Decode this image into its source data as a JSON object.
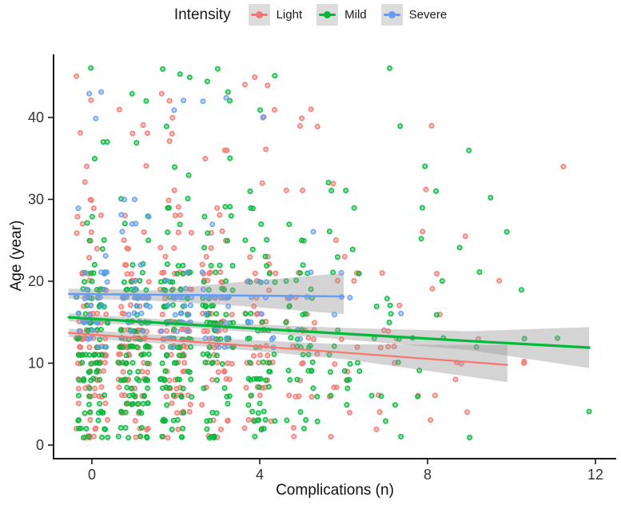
{
  "chart_data": {
    "type": "scatter",
    "title": "",
    "xlabel": "Complications (n)",
    "ylabel": "Age (year)",
    "x_ticks": [
      0,
      4,
      8,
      12
    ],
    "y_ticks": [
      0,
      10,
      20,
      30,
      40
    ],
    "xlim": [
      -0.9,
      12.6
    ],
    "ylim": [
      0,
      47
    ],
    "grid": false,
    "legend": {
      "title": "Intensity",
      "position": "top",
      "key_background": "#DCDCDC",
      "items": [
        {
          "label": "Light",
          "color": "#F8766D"
        },
        {
          "label": "Mild",
          "color": "#00BA38"
        },
        {
          "label": "Severe",
          "color": "#619CFF"
        }
      ]
    },
    "style": {
      "point_radius": 2.7,
      "point_stroke_width": 1.6,
      "point_fill_opacity": 0.45,
      "ci_color": "#999999",
      "ci_opacity": 0.42,
      "axis_color": "#1a1a1a",
      "tick_label_color": "#333333",
      "tick_font_size": 18
    },
    "jitter": {
      "x_width": 0.38,
      "y_width": 0.12,
      "seed": 20240613
    },
    "series": [
      {
        "name": "Light",
        "color": "#F8766D",
        "line_width": 2.2,
        "counts_by_x": {
          "0": 95,
          "1": 90,
          "2": 80,
          "3": 62,
          "4": 48,
          "5": 30,
          "6": 17,
          "7": 12,
          "8": 8,
          "9": 5,
          "10": 2,
          "11": 1
        },
        "age_bands": [
          [
            1,
            5,
            0.13
          ],
          [
            6,
            9,
            0.2
          ],
          [
            10,
            14,
            0.3
          ],
          [
            15,
            21,
            0.22
          ],
          [
            22,
            31,
            0.1
          ],
          [
            32,
            45,
            0.05
          ]
        ],
        "extra_points": [
          [
            7.96,
            31.2
          ],
          [
            10.3,
            10.2
          ],
          [
            8.9,
            25.5
          ]
        ],
        "trend": {
          "x": [
            -0.55,
            3,
            6,
            9.9
          ],
          "y": [
            13.7,
            12.4,
            11.3,
            9.8
          ]
        },
        "ci": {
          "x": [
            -0.55,
            3,
            6,
            9.9
          ],
          "top": [
            14.2,
            13.0,
            12.3,
            12.2
          ],
          "bottom": [
            13.2,
            11.9,
            10.5,
            7.7
          ]
        }
      },
      {
        "name": "Mild",
        "color": "#00BA38",
        "line_width": 3.2,
        "counts_by_x": {
          "0": 100,
          "1": 100,
          "2": 92,
          "3": 75,
          "4": 55,
          "5": 38,
          "6": 22,
          "7": 15,
          "8": 9,
          "9": 5,
          "10": 3,
          "11": 1
        },
        "age_bands": [
          [
            1,
            5,
            0.15
          ],
          [
            6,
            9,
            0.17
          ],
          [
            10,
            15,
            0.28
          ],
          [
            16,
            22,
            0.25
          ],
          [
            23,
            31,
            0.1
          ],
          [
            32,
            46,
            0.05
          ]
        ],
        "extra_points": [
          [
            11.85,
            4.1
          ],
          [
            2.1,
            45.3
          ],
          [
            2.75,
            44.4
          ],
          [
            7.85,
            25.2
          ],
          [
            9.5,
            30.2
          ]
        ],
        "trend": {
          "x": [
            -0.55,
            3,
            6,
            9,
            11.85
          ],
          "y": [
            15.6,
            14.5,
            13.6,
            12.7,
            11.9
          ]
        },
        "ci": {
          "x": [
            -0.55,
            3,
            6,
            9,
            11.85
          ],
          "top": [
            16.1,
            14.9,
            14.3,
            13.9,
            14.4
          ],
          "bottom": [
            15.1,
            14.1,
            12.9,
            11.6,
            9.4
          ]
        }
      },
      {
        "name": "Severe",
        "color": "#619CFF",
        "line_width": 2.5,
        "counts_by_x": {
          "0": 34,
          "1": 34,
          "2": 28,
          "3": 20,
          "4": 12,
          "5": 7,
          "6": 3,
          "7": 1
        },
        "age_bands": [
          [
            12,
            12,
            0.05
          ],
          [
            13,
            17,
            0.38
          ],
          [
            18,
            18,
            0.27
          ],
          [
            19,
            21,
            0.2
          ],
          [
            22,
            30,
            0.07
          ],
          [
            40,
            43,
            0.03
          ]
        ],
        "extra_points": [
          [
            3.2,
            42.4
          ],
          [
            6.15,
            18.0
          ]
        ],
        "trend": {
          "x": [
            -0.55,
            6.0
          ],
          "y": [
            18.45,
            18.15
          ]
        },
        "ci": {
          "x": [
            -0.55,
            1.5,
            3.5,
            6.0
          ],
          "top": [
            19.1,
            18.9,
            19.9,
            21.0
          ],
          "bottom": [
            17.9,
            17.6,
            17.0,
            16.0
          ]
        }
      }
    ]
  }
}
